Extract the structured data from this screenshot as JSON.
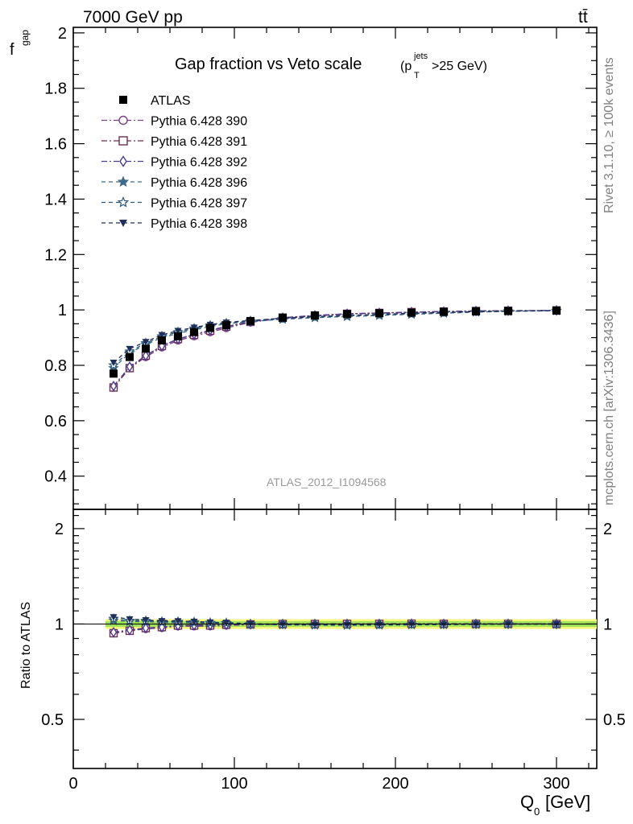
{
  "header": {
    "energy_label": "7000 GeV pp",
    "process_label": "tt̄"
  },
  "side_labels": {
    "rivet": "Rivet 3.1.10, ≥ 100k events",
    "mcplots": "mcplots.cern.ch [arXiv:1306.3436]"
  },
  "chart_data": {
    "type": "scatter",
    "title": "Gap fraction vs Veto scale",
    "title_suffix": "(p",
    "title_sup": "jets",
    "title_sub": "T",
    "title_cut": ">25 GeV)",
    "ylabel_main": "f",
    "ylabel_main_sub": "gap",
    "ylabel_ratio": "Ratio to ATLAS",
    "xlabel": "Q",
    "xlabel_sub": "0",
    "xlabel_unit": "[GeV]",
    "analysis_label": "ATLAS_2012_I1094568",
    "xlim": [
      0,
      325
    ],
    "ylim_main": [
      0.28,
      2.02
    ],
    "ylim_ratio": [
      0.35,
      2.3
    ],
    "x_ticks": [
      0,
      100,
      200,
      300
    ],
    "x_tick_labels": [
      "0",
      "100",
      "200",
      "300"
    ],
    "y_ticks_main": [
      0.4,
      0.6,
      0.8,
      1,
      1.2,
      1.4,
      1.6,
      1.8,
      2
    ],
    "y_tick_labels_main": [
      "0.4",
      "0.6",
      "0.8",
      "1",
      "1.2",
      "1.4",
      "1.6",
      "1.8",
      "2"
    ],
    "y_ticks_ratio": [
      0.5,
      1,
      2
    ],
    "y_tick_labels_ratio": [
      "0.5",
      "1",
      "2"
    ],
    "x": [
      25,
      35,
      45,
      55,
      65,
      75,
      85,
      95,
      110,
      130,
      150,
      170,
      190,
      210,
      230,
      250,
      270,
      300
    ],
    "data": {
      "name": "ATLAS",
      "values": [
        0.77,
        0.83,
        0.86,
        0.89,
        0.905,
        0.92,
        0.935,
        0.945,
        0.96,
        0.972,
        0.98,
        0.985,
        0.988,
        0.99,
        0.993,
        0.995,
        0.996,
        0.998
      ]
    },
    "series": [
      {
        "name": "Pythia 6.428 390",
        "color": "#7b3f86",
        "marker": "circle-open",
        "dash": "7,3,2,3",
        "values": [
          0.72,
          0.79,
          0.83,
          0.865,
          0.89,
          0.905,
          0.92,
          0.935,
          0.955,
          0.97,
          0.978,
          0.985,
          0.988,
          0.991,
          0.994,
          0.996,
          0.997,
          0.998
        ]
      },
      {
        "name": "Pythia 6.428 391",
        "color": "#6b3052",
        "marker": "square-open",
        "dash": "7,3,2,3",
        "values": [
          0.72,
          0.79,
          0.835,
          0.87,
          0.895,
          0.91,
          0.925,
          0.94,
          0.957,
          0.972,
          0.98,
          0.986,
          0.989,
          0.992,
          0.994,
          0.996,
          0.997,
          0.998
        ]
      },
      {
        "name": "Pythia 6.428 392",
        "color": "#4d3a8c",
        "marker": "diamond-open",
        "dash": "7,3,2,3",
        "values": [
          0.725,
          0.795,
          0.835,
          0.87,
          0.895,
          0.912,
          0.927,
          0.94,
          0.958,
          0.972,
          0.98,
          0.986,
          0.989,
          0.992,
          0.994,
          0.996,
          0.997,
          0.998
        ]
      },
      {
        "name": "Pythia 6.428 396",
        "color": "#3f6a8a",
        "marker": "star-filled",
        "dash": "5,4",
        "values": [
          0.79,
          0.845,
          0.875,
          0.9,
          0.915,
          0.928,
          0.94,
          0.95,
          0.958,
          0.966,
          0.972,
          0.976,
          0.98,
          0.984,
          0.988,
          0.992,
          0.995,
          0.997
        ]
      },
      {
        "name": "Pythia 6.428 397",
        "color": "#2f5b7a",
        "marker": "star-open",
        "dash": "5,4",
        "values": [
          0.8,
          0.85,
          0.88,
          0.905,
          0.92,
          0.933,
          0.944,
          0.952,
          0.96,
          0.968,
          0.974,
          0.978,
          0.982,
          0.986,
          0.99,
          0.993,
          0.995,
          0.997
        ]
      },
      {
        "name": "Pythia 6.428 398",
        "color": "#1f2f5c",
        "marker": "triangle-down-filled",
        "dash": "5,4",
        "values": [
          0.81,
          0.86,
          0.885,
          0.91,
          0.925,
          0.937,
          0.947,
          0.955,
          0.962,
          0.97,
          0.976,
          0.98,
          0.984,
          0.988,
          0.991,
          0.994,
          0.996,
          0.998
        ]
      }
    ],
    "legend_placement": "top-left",
    "grid": false,
    "colors": {
      "band_green": "#9ee25a",
      "band_yellow": "#f5f57a",
      "data_marker": "#000000"
    }
  }
}
